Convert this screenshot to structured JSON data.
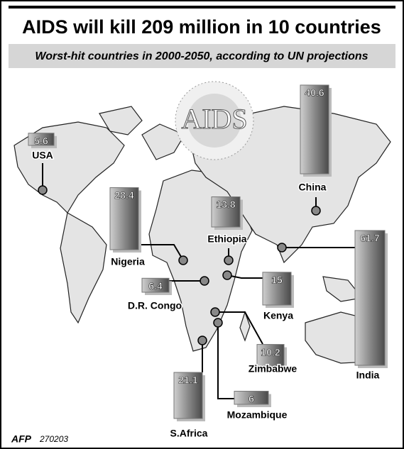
{
  "chart_data": {
    "type": "bar",
    "title": "AIDS will kill 209 million in 10 countries",
    "subtitle": "Worst-hit countries in 2000-2050, according to UN projections",
    "emblem": "AIDS",
    "source": "AFP",
    "code": "270203",
    "categories": [
      "USA",
      "China",
      "Nigeria",
      "Ethiopia",
      "India",
      "D.R. Congo",
      "Kenya",
      "Zimbabwe",
      "Mozambique",
      "S.Africa"
    ],
    "values": [
      5.6,
      40.6,
      28.4,
      13.8,
      61.7,
      6.4,
      15,
      10.2,
      6,
      21.1
    ],
    "color": "#777777"
  }
}
